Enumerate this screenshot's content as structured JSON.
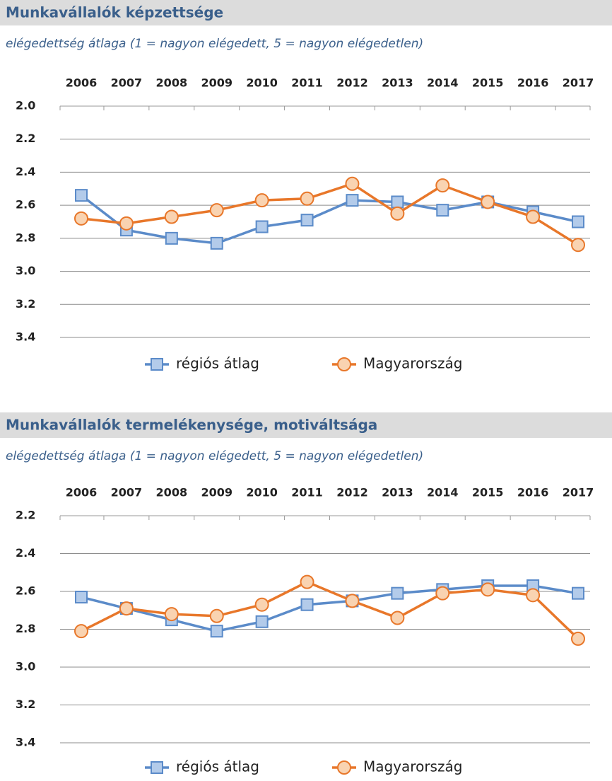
{
  "chart_data": [
    {
      "type": "line",
      "title": "Munkavállalók képzettsége",
      "subtitle": "elégedettség átlaga (1 = nagyon elégedett, 5 = nagyon elégedetlen)",
      "categories": [
        "2006",
        "2007",
        "2008",
        "2009",
        "2010",
        "2011",
        "2012",
        "2013",
        "2014",
        "2015",
        "2016",
        "2017"
      ],
      "series": [
        {
          "name": "régiós átlag",
          "color": "#5b8bc9",
          "marker_fill": "#b3cbea",
          "marker": "square",
          "values": [
            2.54,
            2.75,
            2.8,
            2.83,
            2.73,
            2.69,
            2.57,
            2.58,
            2.63,
            2.58,
            2.64,
            2.7
          ]
        },
        {
          "name": "Magyarország",
          "color": "#e8772a",
          "marker_fill": "#f9d3b1",
          "marker": "circle",
          "values": [
            2.68,
            2.71,
            2.67,
            2.63,
            2.57,
            2.56,
            2.47,
            2.65,
            2.48,
            2.58,
            2.67,
            2.84
          ]
        }
      ],
      "ylim": [
        2.0,
        3.4
      ],
      "y_reversed": true,
      "yticks": [
        {
          "value": 2.0,
          "label": "2.0"
        },
        2.2,
        2.4,
        2.6,
        2.8,
        {
          "value": 3.0,
          "label": "3.0"
        },
        3.2,
        3.4
      ],
      "grid": true,
      "legend": "bottom"
    },
    {
      "type": "line",
      "title": "Munkavállalók termelékenysége, motiváltsága",
      "subtitle": "elégedettség átlaga (1 = nagyon elégedett, 5 = nagyon elégedetlen)",
      "categories": [
        "2006",
        "2007",
        "2008",
        "2009",
        "2010",
        "2011",
        "2012",
        "2013",
        "2014",
        "2015",
        "2016",
        "2017"
      ],
      "series": [
        {
          "name": "régiós átlag",
          "color": "#5b8bc9",
          "marker_fill": "#b3cbea",
          "marker": "square",
          "values": [
            2.63,
            2.69,
            2.75,
            2.81,
            2.76,
            2.67,
            2.65,
            2.61,
            2.59,
            2.57,
            2.57,
            2.61
          ]
        },
        {
          "name": "Magyarország",
          "color": "#e8772a",
          "marker_fill": "#f9d3b1",
          "marker": "circle",
          "values": [
            2.81,
            2.69,
            2.72,
            2.73,
            2.67,
            2.55,
            2.65,
            2.74,
            2.61,
            2.59,
            2.62,
            2.85
          ]
        }
      ],
      "ylim": [
        2.2,
        3.4
      ],
      "y_reversed": true,
      "yticks": [
        2.2,
        2.4,
        2.6,
        2.8,
        {
          "value": 3.0,
          "label": "3.0"
        },
        3.2,
        3.4
      ],
      "grid": true,
      "legend": "bottom"
    }
  ]
}
